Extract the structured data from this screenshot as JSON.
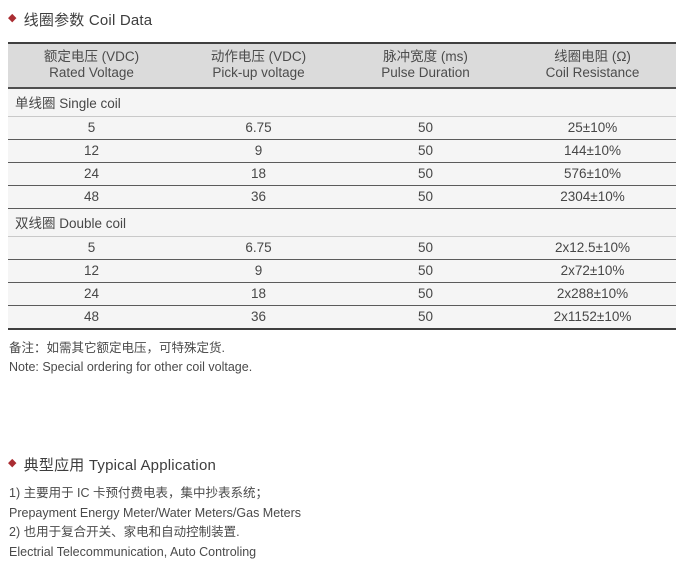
{
  "colors": {
    "accent": "#aa2d32",
    "header_bg": "#dbdbdb",
    "row_bg": "#f5f5f5",
    "border_dark": "#3f3f3f",
    "text": "#474747"
  },
  "coil_section": {
    "bullet": "◆",
    "title": "线圈参数 Coil Data"
  },
  "table": {
    "columns": [
      {
        "zh": "额定电压 (VDC)",
        "en": "Rated Voltage"
      },
      {
        "zh": "动作电压 (VDC)",
        "en": "Pick-up voltage"
      },
      {
        "zh": "脉冲宽度 (ms)",
        "en": "Pulse Duration"
      },
      {
        "zh": "线圈电阻 (Ω)",
        "en": "Coil Resistance"
      }
    ],
    "groups": [
      {
        "label": "单线圈 Single coil",
        "rows": [
          [
            "5",
            "6.75",
            "50",
            "25±10%"
          ],
          [
            "12",
            "9",
            "50",
            "144±10%"
          ],
          [
            "24",
            "18",
            "50",
            "576±10%"
          ],
          [
            "48",
            "36",
            "50",
            "2304±10%"
          ]
        ]
      },
      {
        "label": "双线圈 Double coil",
        "rows": [
          [
            "5",
            "6.75",
            "50",
            "2x12.5±10%"
          ],
          [
            "12",
            "9",
            "50",
            "2x72±10%"
          ],
          [
            "24",
            "18",
            "50",
            "2x288±10%"
          ],
          [
            "48",
            "36",
            "50",
            "2x1152±10%"
          ]
        ]
      }
    ]
  },
  "notes": {
    "zh": "备注：如需其它额定电压，可特殊定货.",
    "en": "Note: Special ordering for other coil voltage."
  },
  "application_section": {
    "bullet": "◆",
    "title": "典型应用 Typical Application",
    "lines": [
      "1) 主要用于 IC 卡预付费电表，集中抄表系统；",
      "Prepayment Energy Meter/Water Meters/Gas Meters",
      "2) 也用于复合开关、家电和自动控制装置.",
      "Electrial Telecommunication, Auto Controling"
    ]
  }
}
